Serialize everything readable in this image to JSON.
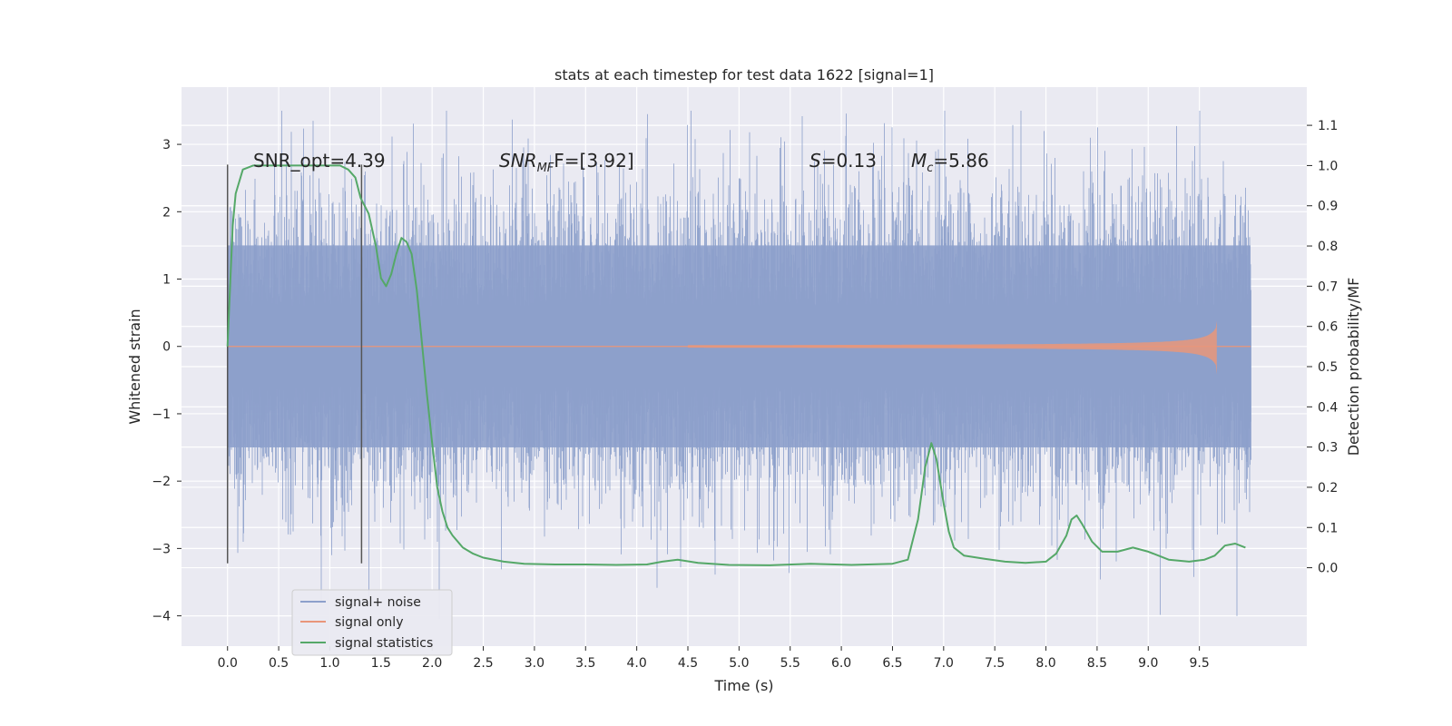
{
  "chart_data": {
    "type": "line",
    "title": "stats at each timestep for test data 1622 [signal=1]",
    "xlabel": "Time (s)",
    "ylabel_left": "Whitened strain",
    "ylabel_right": "Detection probability/MF",
    "xlim": [
      -0.45,
      10.55
    ],
    "ylim_left": [
      -4.45,
      3.85
    ],
    "ylim_right": [
      -0.195,
      1.195
    ],
    "xticks": [
      0.0,
      0.5,
      1.0,
      1.5,
      2.0,
      2.5,
      3.0,
      3.5,
      4.0,
      4.5,
      5.0,
      5.5,
      6.0,
      6.5,
      7.0,
      7.5,
      8.0,
      8.5,
      9.0,
      9.5
    ],
    "xtick_labels": [
      "0.0",
      "0.5",
      "1.0",
      "1.5",
      "2.0",
      "2.5",
      "3.0",
      "3.5",
      "4.0",
      "4.5",
      "5.0",
      "5.5",
      "6.0",
      "6.5",
      "7.0",
      "7.5",
      "8.0",
      "8.5",
      "9.0",
      "9.5"
    ],
    "yticks_left": [
      -4,
      -3,
      -2,
      -1,
      0,
      1,
      2,
      3
    ],
    "ytick_labels_left": [
      "−4",
      "−3",
      "−2",
      "−1",
      "0",
      "1",
      "2",
      "3"
    ],
    "yticks_right": [
      0.0,
      0.1,
      0.2,
      0.3,
      0.4,
      0.5,
      0.6,
      0.7,
      0.8,
      0.9,
      1.0,
      1.1
    ],
    "ytick_labels_right": [
      "0.0",
      "0.1",
      "0.2",
      "0.3",
      "0.4",
      "0.5",
      "0.6",
      "0.7",
      "0.8",
      "0.9",
      "1.0",
      "1.1"
    ],
    "grid": true,
    "legend_position": "lower-left",
    "series": [
      {
        "name": "signal+ noise",
        "axis": "left",
        "color": "#8da0cb",
        "style": "noise",
        "x_range": [
          0.0,
          10.0
        ],
        "typical_amplitude": 1.5,
        "max_excursion": 3.5,
        "min_excursion": -4.05
      },
      {
        "name": "signal only",
        "axis": "left",
        "color": "#e9967a",
        "style": "chirp",
        "x_range": [
          0.0,
          10.0
        ],
        "merger_time": 9.67,
        "peak_amplitude": 0.38
      },
      {
        "name": "signal statistics",
        "axis": "right",
        "color": "#55a868",
        "style": "line",
        "x": [
          0.0,
          0.05,
          0.08,
          0.15,
          0.25,
          0.4,
          0.6,
          0.8,
          1.0,
          1.1,
          1.18,
          1.25,
          1.3,
          1.38,
          1.45,
          1.5,
          1.55,
          1.6,
          1.65,
          1.7,
          1.75,
          1.8,
          1.85,
          1.9,
          1.95,
          2.0,
          2.05,
          2.1,
          2.15,
          2.2,
          2.3,
          2.4,
          2.5,
          2.7,
          2.9,
          3.2,
          3.5,
          3.8,
          4.1,
          4.25,
          4.4,
          4.6,
          4.9,
          5.3,
          5.7,
          6.1,
          6.5,
          6.65,
          6.75,
          6.82,
          6.88,
          6.93,
          7.0,
          7.05,
          7.1,
          7.2,
          7.4,
          7.6,
          7.8,
          8.0,
          8.1,
          8.2,
          8.25,
          8.3,
          8.35,
          8.45,
          8.55,
          8.7,
          8.85,
          9.0,
          9.2,
          9.4,
          9.55,
          9.65,
          9.75,
          9.85,
          9.9,
          9.95
        ],
        "y": [
          0.55,
          0.85,
          0.93,
          0.99,
          1.0,
          1.0,
          1.0,
          1.0,
          1.0,
          1.0,
          0.99,
          0.97,
          0.92,
          0.88,
          0.8,
          0.72,
          0.7,
          0.73,
          0.78,
          0.82,
          0.81,
          0.78,
          0.69,
          0.56,
          0.43,
          0.31,
          0.2,
          0.14,
          0.1,
          0.08,
          0.05,
          0.035,
          0.025,
          0.015,
          0.01,
          0.008,
          0.008,
          0.007,
          0.008,
          0.015,
          0.02,
          0.012,
          0.007,
          0.006,
          0.01,
          0.007,
          0.01,
          0.02,
          0.12,
          0.25,
          0.31,
          0.27,
          0.16,
          0.09,
          0.05,
          0.03,
          0.022,
          0.015,
          0.012,
          0.015,
          0.035,
          0.08,
          0.12,
          0.13,
          0.11,
          0.065,
          0.04,
          0.04,
          0.05,
          0.04,
          0.02,
          0.015,
          0.02,
          0.03,
          0.055,
          0.06,
          0.055,
          0.05
        ]
      }
    ],
    "vertical_lines": [
      {
        "x": 0.0,
        "ymin": -3.22,
        "ymax": 2.7,
        "color": "#555555"
      },
      {
        "x": 1.31,
        "ymin": -3.22,
        "ymax": 2.7,
        "color": "#555555"
      }
    ],
    "annotations": [
      {
        "id": "snr-opt",
        "text": "SNR_opt=4.39",
        "x": 0.2,
        "y": 2.75
      },
      {
        "id": "snr-mf",
        "text_main": "SNR",
        "text_sub": "MF",
        "text_rest": "F=[3.92]",
        "x": 2.6,
        "y": 2.75
      },
      {
        "id": "s-stat",
        "text_main": "S",
        "text_rest": "=0.13",
        "x": 5.6,
        "y": 2.75
      },
      {
        "id": "mc",
        "text_main": "M",
        "text_sub": "c",
        "text_rest": "=5.86",
        "x": 6.6,
        "y": 2.75
      }
    ]
  }
}
